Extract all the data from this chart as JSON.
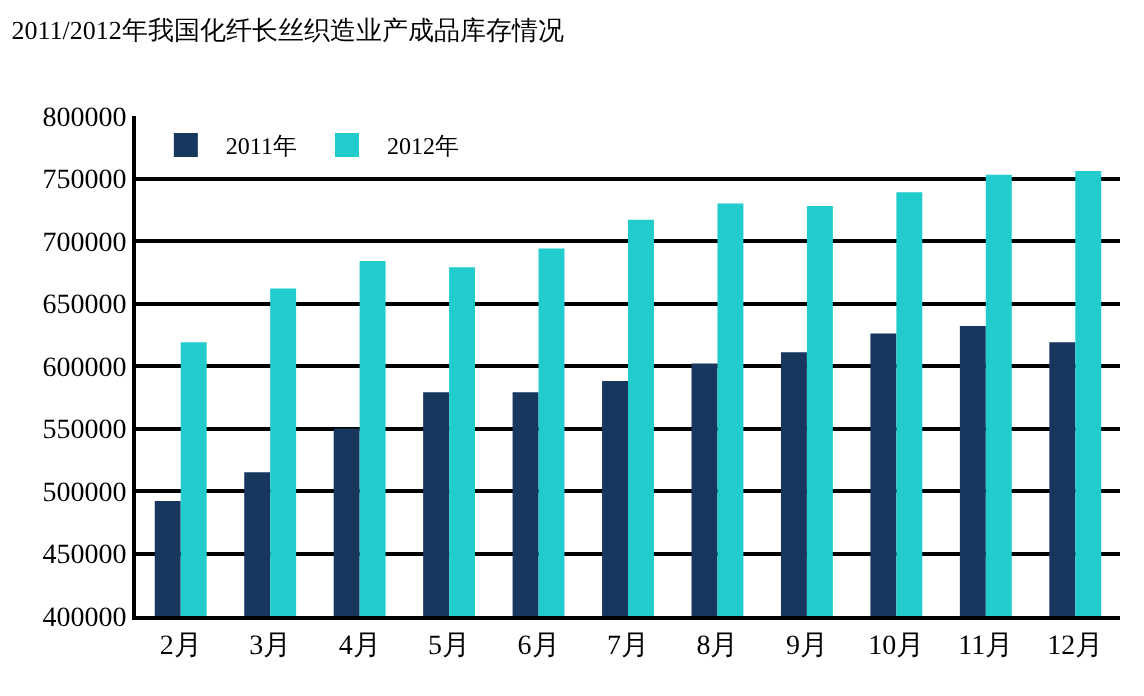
{
  "chart_data": {
    "type": "bar",
    "title": "2011/2012年我国化纤长丝织造业产成品库存情况",
    "categories": [
      "2月",
      "3月",
      "4月",
      "5月",
      "6月",
      "7月",
      "8月",
      "9月",
      "10月",
      "11月",
      "12月"
    ],
    "series": [
      {
        "name": "2011年",
        "color": "#17375e",
        "values": [
          492000,
          515000,
          550000,
          579000,
          579000,
          588000,
          602000,
          611000,
          626000,
          632000,
          619000
        ]
      },
      {
        "name": "2012年",
        "color": "#22cccc",
        "values": [
          619000,
          662000,
          684000,
          679000,
          694000,
          717000,
          730000,
          728000,
          739000,
          753000,
          756000
        ]
      }
    ],
    "ylim": [
      400000,
      800000
    ],
    "yticks": [
      400000,
      450000,
      500000,
      550000,
      600000,
      650000,
      700000,
      750000,
      800000
    ],
    "grid": "y",
    "legend": "top left"
  }
}
